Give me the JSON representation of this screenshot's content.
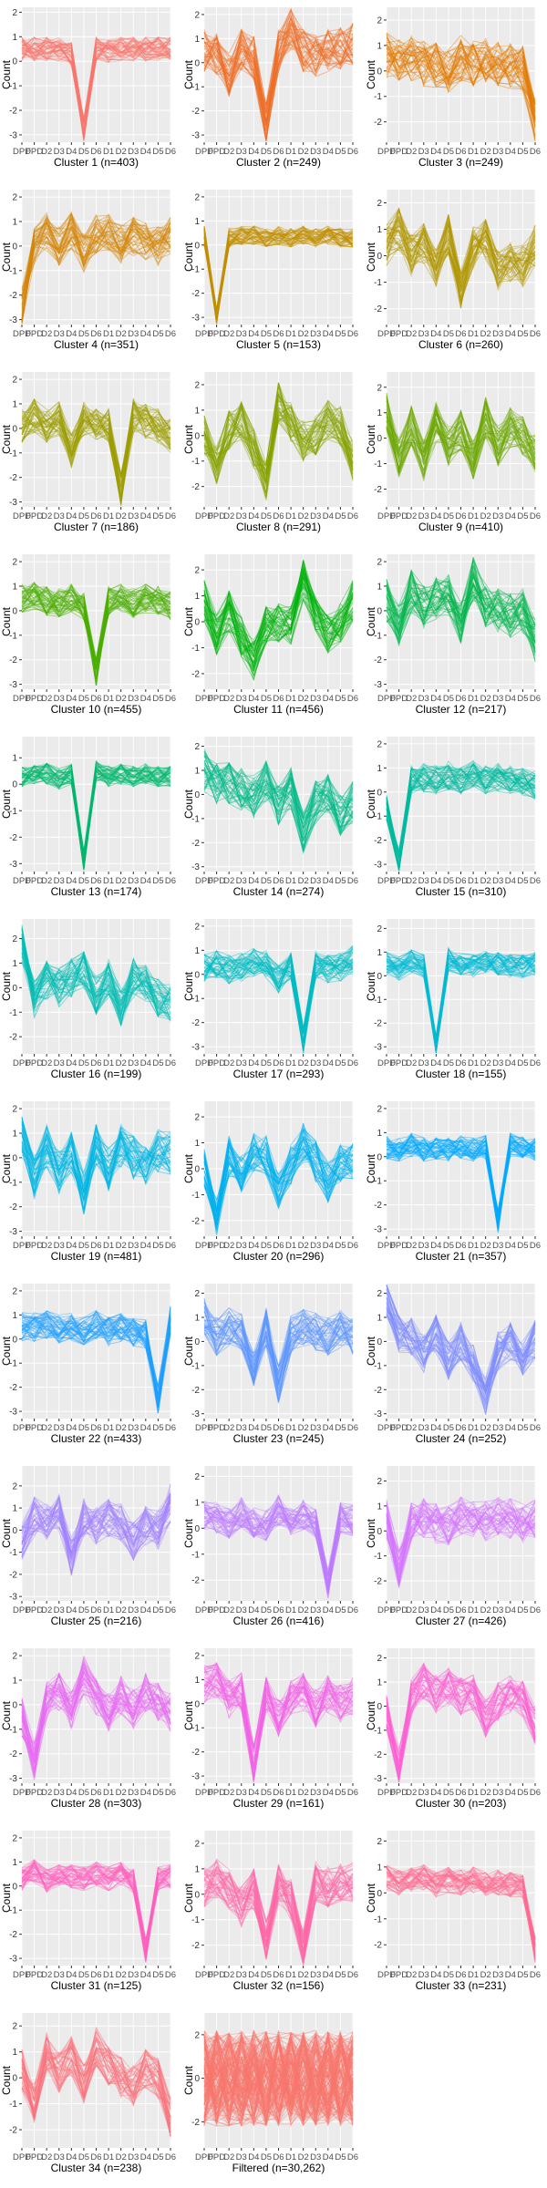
{
  "figure": {
    "ylabel": "Count",
    "x_tick_labels": [
      "DPD",
      "FPD",
      "D2",
      "D3",
      "D4",
      "D5",
      "D6",
      "D1",
      "D2",
      "D3",
      "D4",
      "D5",
      "D6"
    ],
    "panel_background": "#EBEBEB",
    "grid_color": "#FFFFFF"
  },
  "chart_data": [
    {
      "type": "line",
      "title": "Cluster 1 (n=403)",
      "color": "#F8766D",
      "yticks": [
        -3,
        -2,
        -1,
        0,
        1,
        2
      ],
      "ylim": [
        -3.3,
        2.2
      ],
      "profile": [
        0.5,
        0.5,
        0.5,
        0.5,
        0.3,
        -2.8,
        0.5,
        0.4,
        0.5,
        0.5,
        0.5,
        0.5,
        0.5
      ],
      "spread": 0.5
    },
    {
      "type": "line",
      "title": "Cluster 2 (n=249)",
      "color": "#EE6E27",
      "yticks": [
        -3,
        -2,
        -1,
        0,
        1,
        2
      ],
      "ylim": [
        -3.3,
        2.3
      ],
      "profile": [
        0.5,
        0.3,
        -0.5,
        0.5,
        0.2,
        -2.6,
        0.5,
        1.4,
        0.5,
        0.3,
        0.5,
        0.6,
        0.8
      ],
      "spread": 0.9
    },
    {
      "type": "line",
      "title": "Cluster 3 (n=249)",
      "color": "#E27A00",
      "yticks": [
        -2,
        -1,
        0,
        1,
        2
      ],
      "ylim": [
        -2.8,
        2.5
      ],
      "profile": [
        0.6,
        0.4,
        0.5,
        0.3,
        0.2,
        0.0,
        0.5,
        0.3,
        0.4,
        0.3,
        0.2,
        0.1,
        -2.0
      ],
      "spread": 0.9
    },
    {
      "type": "line",
      "title": "Cluster 4 (n=351)",
      "color": "#D4850A",
      "yticks": [
        -3,
        -2,
        -1,
        0,
        1,
        2
      ],
      "ylim": [
        -3.2,
        2.3
      ],
      "profile": [
        -2.5,
        0.0,
        0.6,
        0.0,
        0.6,
        -0.3,
        0.5,
        0.6,
        0.1,
        0.4,
        0.2,
        0.0,
        0.4
      ],
      "spread": 0.8
    },
    {
      "type": "line",
      "title": "Cluster 5 (n=153)",
      "color": "#C28E00",
      "yticks": [
        -3,
        -2,
        -1,
        0,
        1,
        2
      ],
      "ylim": [
        -3.3,
        2.3
      ],
      "profile": [
        0.4,
        -3.0,
        0.3,
        0.4,
        0.4,
        0.3,
        0.4,
        0.3,
        0.4,
        0.3,
        0.4,
        0.3,
        0.3
      ],
      "spread": 0.4
    },
    {
      "type": "line",
      "title": "Cluster 6 (n=260)",
      "color": "#B09700",
      "yticks": [
        -2,
        -1,
        0,
        1,
        2
      ],
      "ylim": [
        -2.6,
        2.5
      ],
      "profile": [
        0.4,
        1.0,
        0.0,
        0.5,
        -0.5,
        0.8,
        -1.2,
        0.3,
        0.6,
        -0.6,
        -0.2,
        -0.4,
        0.4
      ],
      "spread": 0.8
    },
    {
      "type": "line",
      "title": "Cluster 7 (n=186)",
      "color": "#9D9E00",
      "yticks": [
        -3,
        -2,
        -1,
        0,
        1,
        2
      ],
      "ylim": [
        -3.2,
        2.3
      ],
      "profile": [
        0.1,
        0.5,
        0.1,
        0.4,
        -0.9,
        0.4,
        0.2,
        0.1,
        -2.5,
        0.5,
        0.3,
        0.1,
        -0.3
      ],
      "spread": 0.7
    },
    {
      "type": "line",
      "title": "Cluster 8 (n=291)",
      "color": "#86A300",
      "yticks": [
        -2,
        -1,
        0,
        1,
        2
      ],
      "ylim": [
        -2.8,
        2.5
      ],
      "profile": [
        0.0,
        -1.2,
        0.2,
        0.6,
        -0.5,
        -1.8,
        1.3,
        0.5,
        -0.2,
        0.0,
        0.6,
        0.4,
        -1.0
      ],
      "spread": 0.8
    },
    {
      "type": "line",
      "title": "Cluster 9 (n=410)",
      "color": "#6BA800",
      "yticks": [
        -2,
        -1,
        0,
        1,
        2
      ],
      "ylim": [
        -2.7,
        2.6
      ],
      "profile": [
        1.0,
        -0.8,
        0.5,
        -0.9,
        0.6,
        -0.3,
        0.3,
        -0.9,
        0.8,
        -0.3,
        0.4,
        0.1,
        -0.6
      ],
      "spread": 0.8
    },
    {
      "type": "line",
      "title": "Cluster 10 (n=455)",
      "color": "#4AAD00",
      "yticks": [
        -3,
        -2,
        -1,
        0,
        1,
        2
      ],
      "ylim": [
        -3.2,
        2.3
      ],
      "profile": [
        0.5,
        0.6,
        0.4,
        0.3,
        0.5,
        0.2,
        -2.5,
        0.4,
        0.5,
        0.3,
        0.5,
        0.4,
        0.2
      ],
      "spread": 0.6
    },
    {
      "type": "line",
      "title": "Cluster 11 (n=456)",
      "color": "#00B30B",
      "yticks": [
        -2,
        -1,
        0,
        1,
        2
      ],
      "ylim": [
        -2.6,
        2.6
      ],
      "profile": [
        0.8,
        -0.5,
        0.4,
        -0.6,
        -1.5,
        -0.2,
        0.0,
        -0.2,
        1.6,
        0.3,
        -0.5,
        0.0,
        0.8
      ],
      "spread": 0.8
    },
    {
      "type": "line",
      "title": "Cluster 12 (n=217)",
      "color": "#00B54D",
      "yticks": [
        -3,
        -2,
        -1,
        0,
        1,
        2
      ],
      "ylim": [
        -3.2,
        2.3
      ],
      "profile": [
        0.4,
        -0.6,
        0.8,
        0.2,
        0.5,
        0.6,
        -0.5,
        1.3,
        0.2,
        0.0,
        -0.2,
        0.0,
        -1.2
      ],
      "spread": 0.9
    },
    {
      "type": "line",
      "title": "Cluster 13 (n=174)",
      "color": "#00B76E",
      "yticks": [
        -3,
        -2,
        -1,
        0,
        1
      ],
      "ylim": [
        -3.3,
        1.8
      ],
      "profile": [
        0.3,
        0.4,
        0.4,
        0.2,
        0.4,
        -2.9,
        0.5,
        0.3,
        0.4,
        0.3,
        0.4,
        0.3,
        0.3
      ],
      "spread": 0.4
    },
    {
      "type": "line",
      "title": "Cluster 14 (n=274)",
      "color": "#00B989",
      "yticks": [
        -3,
        -2,
        -1,
        0,
        1,
        2
      ],
      "ylim": [
        -3.2,
        2.4
      ],
      "profile": [
        1.0,
        0.4,
        0.5,
        0.2,
        -0.1,
        0.6,
        -0.4,
        0.3,
        -1.6,
        -0.3,
        0.0,
        -0.9,
        -0.3
      ],
      "spread": 0.9
    },
    {
      "type": "line",
      "title": "Cluster 15 (n=310)",
      "color": "#00BB9F",
      "yticks": [
        -3,
        -2,
        -1,
        0,
        1,
        2
      ],
      "ylim": [
        -3.3,
        2.3
      ],
      "profile": [
        -0.6,
        -2.9,
        0.5,
        0.6,
        0.5,
        0.7,
        0.5,
        0.8,
        0.5,
        0.6,
        0.5,
        0.4,
        0.3
      ],
      "spread": 0.6
    },
    {
      "type": "line",
      "title": "Cluster 16 (n=199)",
      "color": "#00BDB2",
      "yticks": [
        -2,
        -1,
        0,
        1,
        2
      ],
      "ylim": [
        -2.7,
        2.8
      ],
      "profile": [
        1.8,
        -0.5,
        0.3,
        0.0,
        0.4,
        0.7,
        -0.3,
        0.4,
        -0.8,
        0.4,
        0.2,
        -0.4,
        -0.6
      ],
      "spread": 0.8
    },
    {
      "type": "line",
      "title": "Cluster 17 (n=293)",
      "color": "#00BDC4",
      "yticks": [
        -3,
        -2,
        -1,
        0,
        1,
        2
      ],
      "ylim": [
        -3.3,
        2.3
      ],
      "profile": [
        0.3,
        0.4,
        0.2,
        0.3,
        0.5,
        0.4,
        -0.2,
        0.3,
        -2.8,
        0.4,
        0.2,
        0.3,
        0.6
      ],
      "spread": 0.6
    },
    {
      "type": "line",
      "title": "Cluster 18 (n=155)",
      "color": "#00BAD4",
      "yticks": [
        -3,
        -2,
        -1,
        0,
        1,
        2
      ],
      "ylim": [
        -3.3,
        2.4
      ],
      "profile": [
        0.5,
        0.3,
        0.6,
        0.4,
        -3.0,
        0.7,
        0.5,
        0.4,
        0.6,
        0.5,
        0.4,
        0.4,
        0.5
      ],
      "spread": 0.5
    },
    {
      "type": "line",
      "title": "Cluster 19 (n=481)",
      "color": "#00B5E2",
      "yticks": [
        -3,
        -2,
        -1,
        0,
        1,
        2
      ],
      "ylim": [
        -3.2,
        2.3
      ],
      "profile": [
        0.8,
        -0.8,
        0.5,
        -0.6,
        0.2,
        -1.5,
        0.5,
        -0.5,
        0.5,
        0.0,
        -0.4,
        0.3,
        0.2
      ],
      "spread": 0.9
    },
    {
      "type": "line",
      "title": "Cluster 20 (n=296)",
      "color": "#00B0EF",
      "yticks": [
        -2,
        -1,
        0,
        1,
        2
      ],
      "ylim": [
        -2.6,
        2.6
      ],
      "profile": [
        0.0,
        -1.8,
        0.5,
        -0.2,
        0.6,
        0.5,
        -0.8,
        0.2,
        1.0,
        0.3,
        -0.5,
        0.2,
        0.3
      ],
      "spread": 0.8
    },
    {
      "type": "line",
      "title": "Cluster 21 (n=357)",
      "color": "#00A9FF",
      "yticks": [
        -3,
        -2,
        -1,
        0,
        1,
        2
      ],
      "ylim": [
        -3.3,
        2.3
      ],
      "profile": [
        0.4,
        0.3,
        0.5,
        0.3,
        0.4,
        0.3,
        0.4,
        0.3,
        0.4,
        -2.7,
        0.5,
        0.4,
        0.3
      ],
      "spread": 0.5
    },
    {
      "type": "line",
      "title": "Cluster 22 (n=433)",
      "color": "#1F9FFF",
      "yticks": [
        -3,
        -2,
        -1,
        0,
        1,
        2
      ],
      "ylim": [
        -3.3,
        2.3
      ],
      "profile": [
        0.5,
        0.5,
        0.6,
        0.4,
        0.5,
        0.3,
        0.6,
        0.3,
        0.5,
        0.3,
        0.2,
        -2.5,
        0.8
      ],
      "spread": 0.6
    },
    {
      "type": "line",
      "title": "Cluster 23 (n=245)",
      "color": "#5C95FF",
      "yticks": [
        -3,
        -2,
        -1,
        0,
        1,
        2
      ],
      "ylim": [
        -3.2,
        2.4
      ],
      "profile": [
        1.0,
        0.2,
        0.6,
        0.4,
        -1.2,
        0.6,
        -1.8,
        0.3,
        0.6,
        0.4,
        0.2,
        0.5,
        0.2
      ],
      "spread": 0.8
    },
    {
      "type": "line",
      "title": "Cluster 24 (n=252)",
      "color": "#7F8CFF",
      "yticks": [
        -3,
        -2,
        -1,
        0,
        1,
        2
      ],
      "ylim": [
        -3.2,
        2.4
      ],
      "profile": [
        1.8,
        0.3,
        0.2,
        -0.5,
        0.3,
        -0.8,
        0.0,
        -0.9,
        -2.3,
        -0.4,
        0.0,
        -0.6,
        0.1
      ],
      "spread": 0.8
    },
    {
      "type": "line",
      "title": "Cluster 25 (n=216)",
      "color": "#A184FF",
      "yticks": [
        -3,
        -2,
        -1,
        0,
        1,
        2
      ],
      "ylim": [
        -3.2,
        2.9
      ],
      "profile": [
        -0.6,
        0.6,
        0.3,
        0.8,
        -1.2,
        0.6,
        0.2,
        0.5,
        0.3,
        -0.5,
        0.2,
        0.0,
        1.2
      ],
      "spread": 0.9
    },
    {
      "type": "line",
      "title": "Cluster 26 (n=416)",
      "color": "#BD7CFF",
      "yticks": [
        -2,
        -1,
        0,
        1,
        2
      ],
      "ylim": [
        -2.8,
        2.4
      ],
      "profile": [
        0.5,
        0.4,
        0.2,
        0.6,
        0.2,
        0.1,
        0.7,
        0.3,
        0.5,
        0.2,
        -2.2,
        0.4,
        0.3
      ],
      "spread": 0.6
    },
    {
      "type": "line",
      "title": "Cluster 27 (n=426)",
      "color": "#D574FE",
      "yticks": [
        -2,
        -1,
        0,
        1,
        2
      ],
      "ylim": [
        -2.8,
        2.6
      ],
      "profile": [
        0.5,
        -1.5,
        0.4,
        0.5,
        0.3,
        0.2,
        0.6,
        0.5,
        0.4,
        0.6,
        0.5,
        0.3,
        0.5
      ],
      "spread": 0.8
    },
    {
      "type": "line",
      "title": "Cluster 28 (n=303)",
      "color": "#E76BF3",
      "yticks": [
        -3,
        -2,
        -1,
        0,
        1,
        2
      ],
      "ylim": [
        -3.2,
        2.3
      ],
      "profile": [
        -0.5,
        -2.3,
        0.2,
        0.5,
        -0.2,
        1.2,
        0.3,
        -0.3,
        0.4,
        -0.2,
        0.5,
        0.1,
        -0.3
      ],
      "spread": 0.8
    },
    {
      "type": "line",
      "title": "Cluster 29 (n=161)",
      "color": "#F365E6",
      "yticks": [
        -3,
        -2,
        -1,
        0,
        1,
        2
      ],
      "ylim": [
        -3.3,
        2.3
      ],
      "profile": [
        0.8,
        1.0,
        0.2,
        0.5,
        -2.5,
        0.4,
        -0.6,
        0.3,
        0.5,
        -0.2,
        0.4,
        0.0,
        0.3
      ],
      "spread": 0.8
    },
    {
      "type": "line",
      "title": "Cluster 30 (n=203)",
      "color": "#FC61D4",
      "yticks": [
        -3,
        -2,
        -1,
        0,
        1,
        2
      ],
      "ylim": [
        -3.2,
        2.4
      ],
      "profile": [
        -0.3,
        -2.5,
        0.3,
        1.0,
        0.5,
        0.8,
        0.4,
        0.6,
        -0.5,
        0.2,
        0.5,
        0.3,
        -0.8
      ],
      "spread": 0.8
    },
    {
      "type": "line",
      "title": "Cluster 31 (n=125)",
      "color": "#FF62BF",
      "yticks": [
        -3,
        -2,
        -1,
        0,
        1,
        2
      ],
      "ylim": [
        -3.3,
        2.3
      ],
      "profile": [
        0.3,
        0.6,
        0.2,
        0.5,
        0.4,
        0.3,
        0.5,
        0.3,
        0.5,
        0.2,
        -2.7,
        0.3,
        0.4
      ],
      "spread": 0.5
    },
    {
      "type": "line",
      "title": "Cluster 32 (n=156)",
      "color": "#FF66A8",
      "yticks": [
        -2,
        -1,
        0,
        1,
        2
      ],
      "ylim": [
        -2.8,
        2.5
      ],
      "profile": [
        0.3,
        0.6,
        0.2,
        -0.5,
        0.2,
        -1.8,
        0.4,
        -0.2,
        -2.2,
        0.5,
        0.3,
        0.4,
        0.5
      ],
      "spread": 0.8
    },
    {
      "type": "line",
      "title": "Cluster 33 (n=231)",
      "color": "#FF6C91",
      "yticks": [
        -2,
        -1,
        0,
        1,
        2
      ],
      "ylim": [
        -2.8,
        2.4
      ],
      "profile": [
        0.6,
        0.4,
        0.5,
        0.6,
        0.3,
        0.5,
        0.4,
        0.5,
        0.3,
        0.4,
        0.3,
        0.2,
        -2.2
      ],
      "spread": 0.5
    },
    {
      "type": "line",
      "title": "Cluster 34 (n=238)",
      "color": "#FB727B",
      "yticks": [
        -2,
        -1,
        0,
        1,
        2
      ],
      "ylim": [
        -2.7,
        2.5
      ],
      "profile": [
        0.3,
        -1.0,
        1.0,
        0.2,
        0.8,
        -0.3,
        1.2,
        0.5,
        0.0,
        -0.3,
        0.4,
        0.0,
        -1.5
      ],
      "spread": 0.8
    },
    {
      "type": "line",
      "title": "Filtered (n=30,262)",
      "color": "#F8766D",
      "yticks": [
        -2,
        0,
        2
      ],
      "ylim": [
        -3.2,
        3.0
      ],
      "profile": [
        0.0,
        0.0,
        0.0,
        0.0,
        0.0,
        0.0,
        0.0,
        0.0,
        0.0,
        0.0,
        0.0,
        0.0,
        0.0
      ],
      "spread": 2.2
    }
  ]
}
